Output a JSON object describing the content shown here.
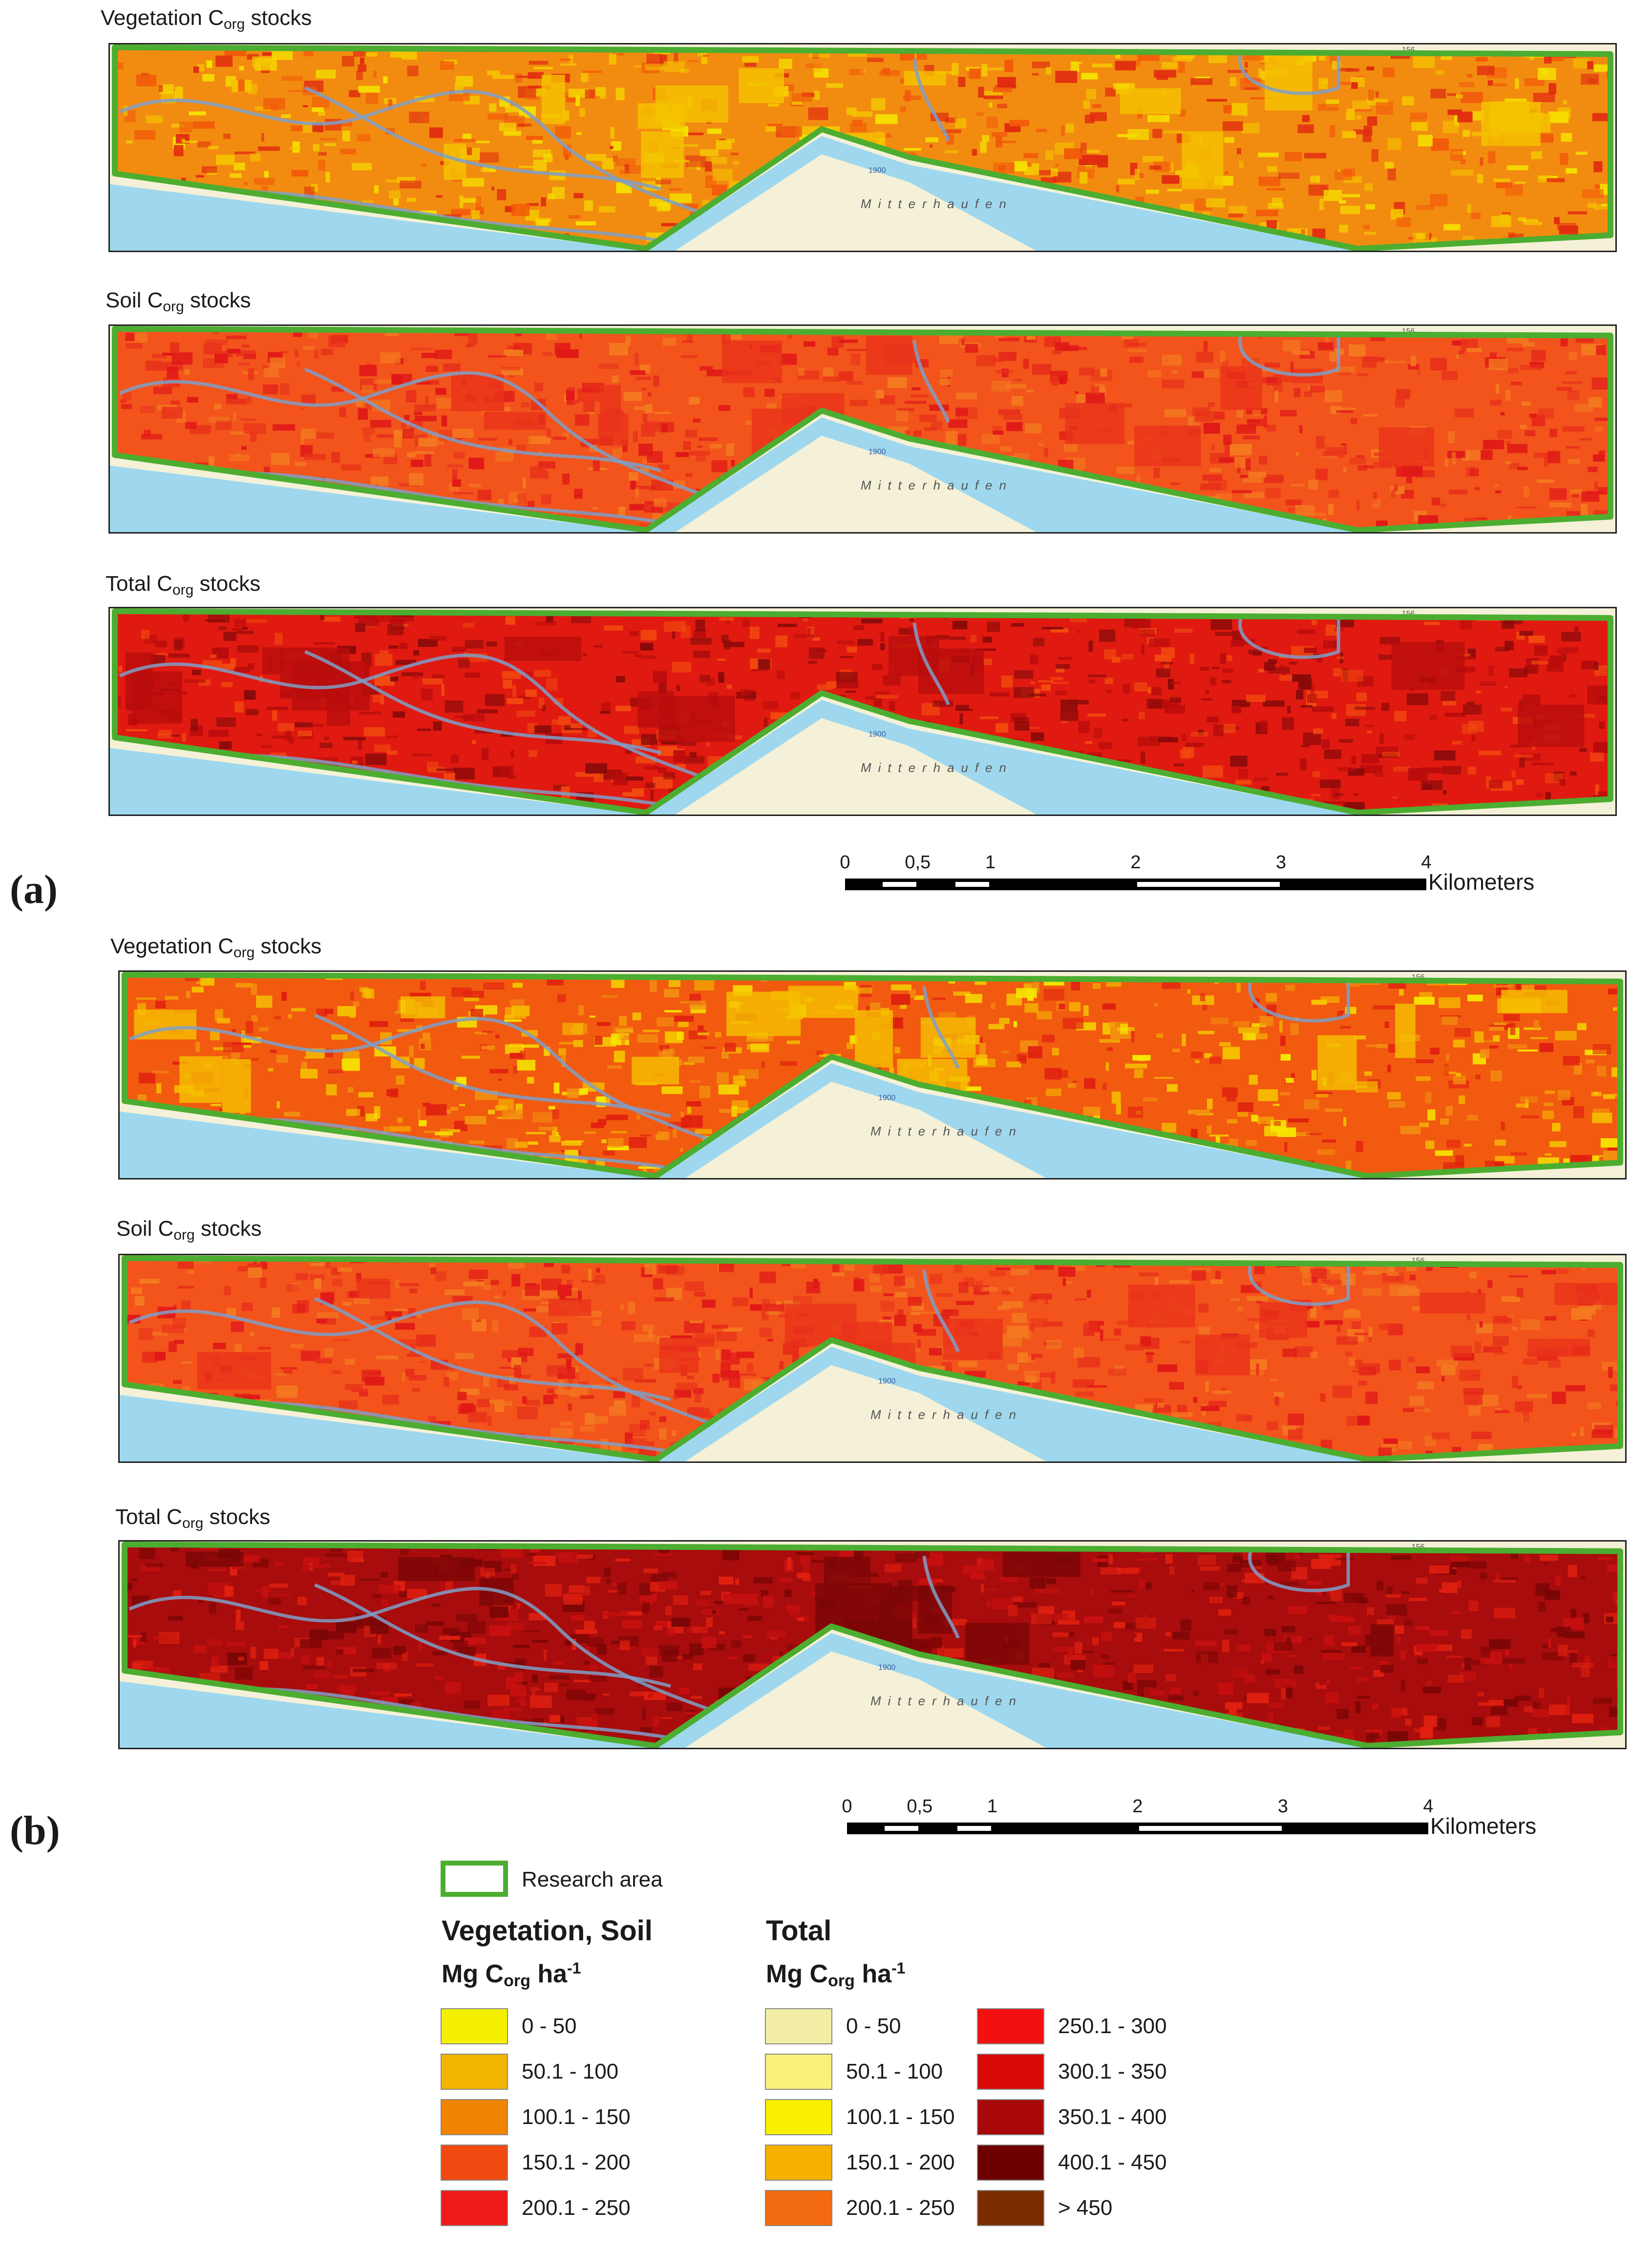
{
  "panel_a": {
    "label": "(a)",
    "maps": [
      {
        "title_main": "Vegetation C",
        "title_sub": "org",
        "title_tail": " stocks",
        "palette": "veg_a"
      },
      {
        "title_main": "Soil C",
        "title_sub": "org",
        "title_tail": " stocks",
        "palette": "soil"
      },
      {
        "title_main": "Total C",
        "title_sub": "org",
        "title_tail": " stocks",
        "palette": "total_a"
      }
    ]
  },
  "panel_b": {
    "label": "(b)",
    "maps": [
      {
        "title_main": "Vegetation C",
        "title_sub": "org",
        "title_tail": " stocks",
        "palette": "veg_b"
      },
      {
        "title_main": "Soil C",
        "title_sub": "org",
        "title_tail": " stocks",
        "palette": "soil"
      },
      {
        "title_main": "Total C",
        "title_sub": "org",
        "title_tail": " stocks",
        "palette": "total_b"
      }
    ]
  },
  "map_labels": {
    "place": "Mitterhaufen",
    "contour_a": "1900",
    "grid_a": "156",
    "edge_a": "a"
  },
  "scalebar": {
    "ticks": [
      "0",
      "0,5",
      "1",
      "2",
      "3",
      "4"
    ],
    "tick_values": [
      0,
      0.5,
      1,
      2,
      3,
      4
    ],
    "max_km": 4,
    "unit": "Kilometers"
  },
  "legend": {
    "research_area": "Research area",
    "research_color": "#4cad30",
    "veg_soil": {
      "heading": "Vegetation, Soil",
      "unit_main": "Mg C",
      "unit_sub": "org",
      "unit_tail": " ha",
      "unit_sup": "-1",
      "classes": [
        {
          "label": "0 - 50",
          "color": "#f5f000"
        },
        {
          "label": "50.1 - 100",
          "color": "#f2b400"
        },
        {
          "label": "100.1 - 150",
          "color": "#f08300"
        },
        {
          "label": "150.1 - 200",
          "color": "#f04a10"
        },
        {
          "label": "200.1 - 250",
          "color": "#ee1a1a"
        }
      ]
    },
    "total": {
      "heading": "Total",
      "unit_main": "Mg C",
      "unit_sub": "org",
      "unit_tail": " ha",
      "unit_sup": "-1",
      "classes": [
        {
          "label": "0 - 50",
          "color": "#f2eea6"
        },
        {
          "label": "50.1 - 100",
          "color": "#f8f27a"
        },
        {
          "label": "100.1 - 150",
          "color": "#f8f000"
        },
        {
          "label": "150.1 - 200",
          "color": "#f5b000"
        },
        {
          "label": "200.1 - 250",
          "color": "#f26a10"
        },
        {
          "label": "250.1 - 300",
          "color": "#f21010"
        },
        {
          "label": "300.1 - 350",
          "color": "#d80808"
        },
        {
          "label": "350.1 - 400",
          "color": "#a80808"
        },
        {
          "label": "400.1 - 450",
          "color": "#6e0000"
        },
        {
          "label": "> 450",
          "color": "#7a2c00"
        }
      ]
    }
  },
  "palettes": {
    "veg_a": {
      "base": "#f28c10",
      "spots": [
        "#f5c400",
        "#f25a0a",
        "#e02a10",
        "#f5e000"
      ]
    },
    "soil": {
      "base": "#f2541c",
      "spots": [
        "#e8321a",
        "#f47a20",
        "#e01818"
      ]
    },
    "total_a": {
      "base": "#e01a10",
      "spots": [
        "#b80c0c",
        "#f24a10",
        "#8a0a0a"
      ]
    },
    "veg_b": {
      "base": "#f25a10",
      "spots": [
        "#f5c000",
        "#f29010",
        "#e02010",
        "#f5e800"
      ]
    },
    "total_b": {
      "base": "#a80c0c",
      "spots": [
        "#7a0606",
        "#e02010",
        "#c81010"
      ]
    }
  },
  "colors": {
    "water": "#9fd8ee",
    "land": "#f4f1d8",
    "river_line": "#7f9fc8",
    "boundary": "#4cad30"
  }
}
